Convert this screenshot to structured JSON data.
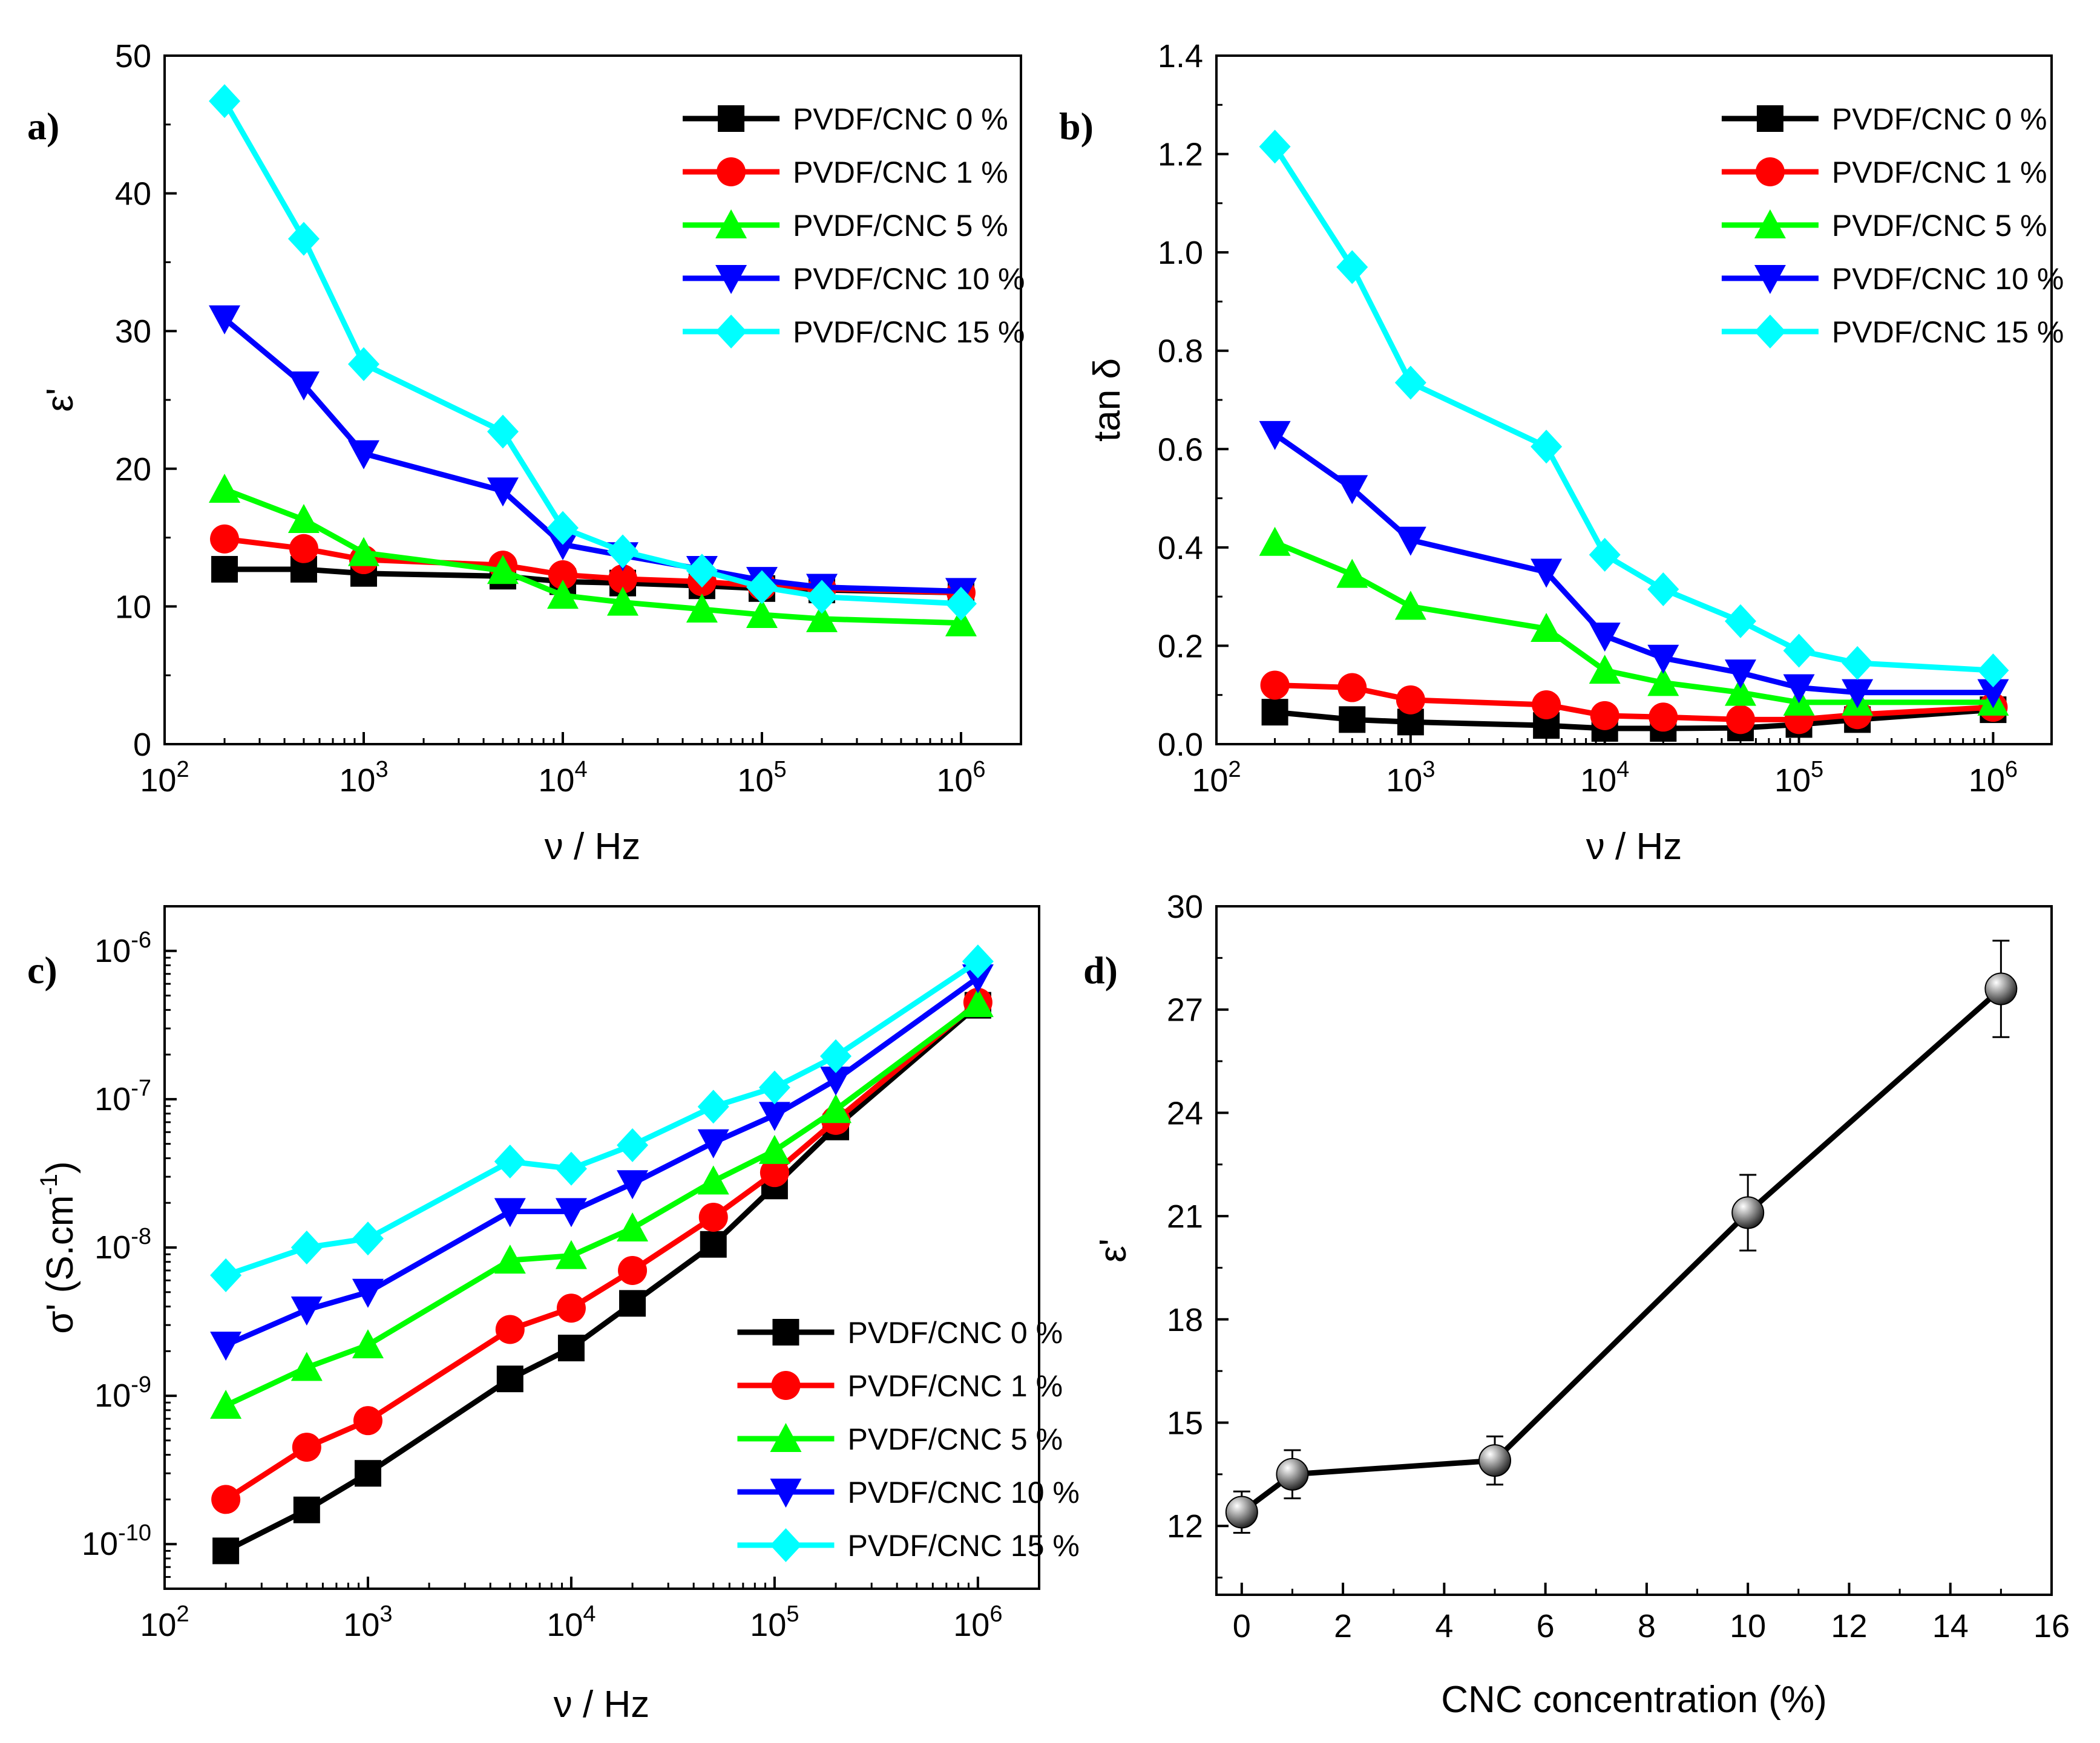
{
  "chart_data": [
    {
      "panel": "a)",
      "type": "line",
      "xscale": "log",
      "xlim": [
        100,
        2000000
      ],
      "ylim": [
        0,
        50
      ],
      "yticks": [
        "0",
        "10",
        "20",
        "30",
        "40",
        "50"
      ],
      "xticks": [
        {
          "base": "10",
          "exp": "2"
        },
        {
          "base": "10",
          "exp": "3"
        },
        {
          "base": "10",
          "exp": "4"
        },
        {
          "base": "10",
          "exp": "5"
        },
        {
          "base": "10",
          "exp": "6"
        }
      ],
      "xlabel": "ν / Hz",
      "ylabel": "ε'",
      "legend_position": "top-right",
      "x": [
        200,
        500,
        1000,
        5000,
        10000,
        20000,
        50000,
        100000,
        200000,
        1000000
      ],
      "series": [
        {
          "name": "PVDF/CNC 0 %",
          "color": "#000000",
          "marker": "square",
          "values": [
            12.7,
            12.7,
            12.4,
            12.2,
            11.8,
            11.7,
            11.5,
            11.3,
            11.2,
            11.0
          ]
        },
        {
          "name": "PVDF/CNC 1 %",
          "color": "#ff0000",
          "marker": "circle",
          "values": [
            14.9,
            14.2,
            13.4,
            13.0,
            12.3,
            12.0,
            11.8,
            11.5,
            11.3,
            11.0
          ]
        },
        {
          "name": "PVDF/CNC 5 %",
          "color": "#00ff00",
          "marker": "triangle-up",
          "values": [
            18.5,
            16.3,
            13.9,
            12.6,
            10.8,
            10.3,
            9.8,
            9.4,
            9.1,
            8.8
          ]
        },
        {
          "name": "PVDF/CNC 10 %",
          "color": "#0000ff",
          "marker": "triangle-down",
          "values": [
            30.9,
            26.1,
            21.1,
            18.4,
            14.5,
            13.7,
            12.7,
            11.9,
            11.4,
            11.1
          ]
        },
        {
          "name": "PVDF/CNC 15 %",
          "color": "#00ffff",
          "marker": "diamond",
          "values": [
            46.7,
            36.7,
            27.6,
            22.7,
            15.7,
            14.0,
            12.6,
            11.4,
            10.7,
            10.2
          ]
        }
      ]
    },
    {
      "panel": "b)",
      "type": "line",
      "xscale": "log",
      "xlim": [
        100,
        2000000
      ],
      "ylim": [
        0,
        1.4
      ],
      "yticks": [
        "0.0",
        "0.2",
        "0.4",
        "0.6",
        "0.8",
        "1.0",
        "1.2",
        "1.4"
      ],
      "xticks": [
        {
          "base": "10",
          "exp": "2"
        },
        {
          "base": "10",
          "exp": "3"
        },
        {
          "base": "10",
          "exp": "4"
        },
        {
          "base": "10",
          "exp": "5"
        },
        {
          "base": "10",
          "exp": "6"
        }
      ],
      "xlabel": "ν / Hz",
      "ylabel": "tan δ",
      "legend_position": "top-right",
      "x": [
        200,
        500,
        1000,
        5000,
        10000,
        20000,
        50000,
        100000,
        200000,
        1000000
      ],
      "series": [
        {
          "name": "PVDF/CNC 0 %",
          "color": "#000000",
          "marker": "square",
          "values": [
            0.065,
            0.05,
            0.045,
            0.038,
            0.032,
            0.032,
            0.033,
            0.04,
            0.05,
            0.07
          ]
        },
        {
          "name": "PVDF/CNC 1 %",
          "color": "#ff0000",
          "marker": "circle",
          "values": [
            0.12,
            0.115,
            0.09,
            0.08,
            0.058,
            0.055,
            0.05,
            0.05,
            0.06,
            0.075
          ]
        },
        {
          "name": "PVDF/CNC 5 %",
          "color": "#00ff00",
          "marker": "triangle-up",
          "values": [
            0.41,
            0.345,
            0.28,
            0.235,
            0.15,
            0.125,
            0.105,
            0.085,
            0.085,
            0.085
          ]
        },
        {
          "name": "PVDF/CNC 10 %",
          "color": "#0000ff",
          "marker": "triangle-down",
          "values": [
            0.63,
            0.52,
            0.415,
            0.35,
            0.22,
            0.175,
            0.145,
            0.115,
            0.105,
            0.105
          ]
        },
        {
          "name": "PVDF/CNC 15 %",
          "color": "#00ffff",
          "marker": "diamond",
          "values": [
            1.215,
            0.97,
            0.735,
            0.605,
            0.385,
            0.315,
            0.25,
            0.19,
            0.165,
            0.15
          ]
        }
      ]
    },
    {
      "panel": "c)",
      "type": "line",
      "xscale": "log",
      "yscale": "log",
      "xlim": [
        100,
        2000000
      ],
      "ylim": [
        5e-11,
        2e-06
      ],
      "yticks": [
        {
          "base": "10",
          "exp": "-10",
          "value": 1e-10
        },
        {
          "base": "10",
          "exp": "-9",
          "value": 1e-09
        },
        {
          "base": "10",
          "exp": "-8",
          "value": 1e-08
        },
        {
          "base": "10",
          "exp": "-7",
          "value": 1e-07
        },
        {
          "base": "10",
          "exp": "-6",
          "value": 1e-06
        }
      ],
      "xticks": [
        {
          "base": "10",
          "exp": "2"
        },
        {
          "base": "10",
          "exp": "3"
        },
        {
          "base": "10",
          "exp": "4"
        },
        {
          "base": "10",
          "exp": "5"
        },
        {
          "base": "10",
          "exp": "6"
        }
      ],
      "xlabel": "ν / Hz",
      "ylabel": "σ' (S.cm",
      "ylabel_sup": "-1",
      "ylabel_close": ")",
      "legend_position": "bottom-right",
      "x": [
        200,
        500,
        1000,
        5000,
        10000,
        20000,
        50000,
        100000,
        200000,
        1000000
      ],
      "series": [
        {
          "name": "PVDF/CNC 0 %",
          "color": "#000000",
          "marker": "square",
          "values": [
            9e-11,
            1.7e-10,
            3e-10,
            1.3e-09,
            2.1e-09,
            4.2e-09,
            1.05e-08,
            2.6e-08,
            6.5e-08,
            4.3e-07
          ]
        },
        {
          "name": "PVDF/CNC 1 %",
          "color": "#ff0000",
          "marker": "circle",
          "values": [
            2e-10,
            4.5e-10,
            6.8e-10,
            2.8e-09,
            3.9e-09,
            7e-09,
            1.6e-08,
            3.2e-08,
            7.2e-08,
            4.5e-07
          ]
        },
        {
          "name": "PVDF/CNC 5 %",
          "color": "#00ff00",
          "marker": "triangle-up",
          "values": [
            8.6e-10,
            1.55e-09,
            2.2e-09,
            8.2e-09,
            8.8e-09,
            1.35e-08,
            2.8e-08,
            4.5e-08,
            8.5e-08,
            4.4e-07
          ]
        },
        {
          "name": "PVDF/CNC 10 %",
          "color": "#0000ff",
          "marker": "triangle-down",
          "values": [
            2.2e-09,
            3.8e-09,
            5e-09,
            1.75e-08,
            1.75e-08,
            2.7e-08,
            5.1e-08,
            7.8e-08,
            1.35e-07,
            6.6e-07
          ]
        },
        {
          "name": "PVDF/CNC 15 %",
          "color": "#00ffff",
          "marker": "diamond",
          "values": [
            6.5e-09,
            1e-08,
            1.15e-08,
            3.8e-08,
            3.4e-08,
            4.9e-08,
            8.9e-08,
            1.2e-07,
            1.95e-07,
            8.5e-07
          ]
        }
      ]
    },
    {
      "panel": "d)",
      "type": "line",
      "xlim": [
        -0.5,
        16
      ],
      "ylim": [
        10,
        30
      ],
      "xticks": [
        "0",
        "2",
        "4",
        "6",
        "8",
        "10",
        "12",
        "14",
        "16"
      ],
      "yticks": [
        "12",
        "15",
        "18",
        "21",
        "24",
        "27",
        "30"
      ],
      "xlabel": "CNC concentration (%)",
      "ylabel": "ε'",
      "x": [
        0,
        1,
        5,
        10,
        15
      ],
      "y": [
        12.4,
        13.5,
        13.9,
        21.1,
        27.6
      ],
      "yerr": [
        0.6,
        0.7,
        0.7,
        1.1,
        1.4
      ],
      "color": "#000000",
      "marker": "sphere"
    }
  ]
}
